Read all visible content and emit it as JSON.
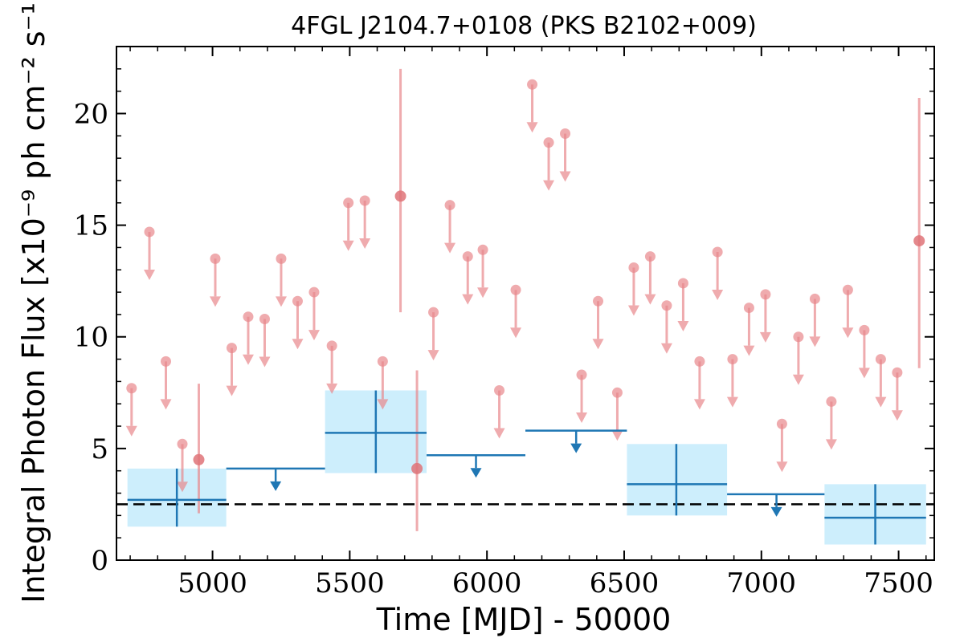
{
  "chart_data": {
    "type": "scatter",
    "title": "4FGL J2104.7+0108 (PKS B2102+009)",
    "xlabel": "Time [MJD] - 50000",
    "ylabel": "Integral Photon Flux [x10⁻⁹ ph cm⁻² s⁻¹]",
    "xlim": [
      4650,
      7630
    ],
    "ylim": [
      0,
      23
    ],
    "xticks": [
      5000,
      5500,
      6000,
      6500,
      7000,
      7500
    ],
    "yticks": [
      0,
      5,
      10,
      15,
      20
    ],
    "xtick_labels": [
      "5000",
      "5500",
      "6000",
      "6500",
      "7000",
      "7500"
    ],
    "ytick_labels": [
      "0",
      "5",
      "10",
      "15",
      "20"
    ],
    "grid": false,
    "colors": {
      "short_bins": "#e8888b",
      "long_bins": "#1f77b4",
      "long_bin_box": "#cdeefc",
      "reference_line": "#000000"
    },
    "reference_line": {
      "y": 2.5,
      "style": "dashed"
    },
    "short_bin_upper_limits": [
      {
        "x": 4705,
        "y": 7.7
      },
      {
        "x": 4770,
        "y": 14.7
      },
      {
        "x": 4830,
        "y": 8.9
      },
      {
        "x": 4890,
        "y": 5.2
      },
      {
        "x": 5010,
        "y": 13.5
      },
      {
        "x": 5070,
        "y": 9.5
      },
      {
        "x": 5130,
        "y": 10.9
      },
      {
        "x": 5190,
        "y": 10.8
      },
      {
        "x": 5250,
        "y": 13.5
      },
      {
        "x": 5310,
        "y": 11.6
      },
      {
        "x": 5370,
        "y": 12.0
      },
      {
        "x": 5435,
        "y": 9.6
      },
      {
        "x": 5495,
        "y": 16.0
      },
      {
        "x": 5555,
        "y": 16.1
      },
      {
        "x": 5620,
        "y": 8.9
      },
      {
        "x": 5805,
        "y": 11.1
      },
      {
        "x": 5865,
        "y": 15.9
      },
      {
        "x": 5930,
        "y": 13.6
      },
      {
        "x": 5985,
        "y": 13.9
      },
      {
        "x": 6045,
        "y": 7.6
      },
      {
        "x": 6105,
        "y": 12.1
      },
      {
        "x": 6165,
        "y": 21.3
      },
      {
        "x": 6225,
        "y": 18.7
      },
      {
        "x": 6285,
        "y": 19.1
      },
      {
        "x": 6345,
        "y": 8.3
      },
      {
        "x": 6405,
        "y": 11.6
      },
      {
        "x": 6475,
        "y": 7.5
      },
      {
        "x": 6535,
        "y": 13.1
      },
      {
        "x": 6595,
        "y": 13.6
      },
      {
        "x": 6655,
        "y": 11.4
      },
      {
        "x": 6715,
        "y": 12.4
      },
      {
        "x": 6775,
        "y": 8.9
      },
      {
        "x": 6840,
        "y": 13.8
      },
      {
        "x": 6895,
        "y": 9.0
      },
      {
        "x": 6955,
        "y": 11.3
      },
      {
        "x": 7015,
        "y": 11.9
      },
      {
        "x": 7075,
        "y": 6.1
      },
      {
        "x": 7135,
        "y": 10.0
      },
      {
        "x": 7195,
        "y": 11.7
      },
      {
        "x": 7255,
        "y": 7.1
      },
      {
        "x": 7315,
        "y": 12.1
      },
      {
        "x": 7375,
        "y": 10.3
      },
      {
        "x": 7435,
        "y": 9.0
      },
      {
        "x": 7495,
        "y": 8.4
      }
    ],
    "short_bin_detections": [
      {
        "x": 4950,
        "y": 4.5,
        "ylow": 2.1,
        "yhigh": 7.9
      },
      {
        "x": 5685,
        "y": 16.3,
        "ylow": 11.1,
        "yhigh": 22.0
      },
      {
        "x": 5745,
        "y": 4.1,
        "ylow": 1.3,
        "yhigh": 8.5
      },
      {
        "x": 7575,
        "y": 14.3,
        "ylow": 8.6,
        "yhigh": 20.7
      }
    ],
    "long_bin_detections": [
      {
        "x": 4870,
        "xlow": 4690,
        "xhigh": 5050,
        "y": 2.7,
        "ylow": 1.5,
        "yhigh": 4.1
      },
      {
        "x": 5595,
        "xlow": 5410,
        "xhigh": 5780,
        "y": 5.7,
        "ylow": 3.9,
        "yhigh": 7.6
      },
      {
        "x": 6690,
        "xlow": 6510,
        "xhigh": 6875,
        "y": 3.4,
        "ylow": 2.0,
        "yhigh": 5.2
      },
      {
        "x": 7415,
        "xlow": 7230,
        "xhigh": 7600,
        "y": 1.9,
        "ylow": 0.7,
        "yhigh": 3.4
      }
    ],
    "long_bin_upper_limits": [
      {
        "x": 5230,
        "xlow": 5050,
        "xhigh": 5410,
        "y": 4.1
      },
      {
        "x": 5960,
        "xlow": 5780,
        "xhigh": 6140,
        "y": 4.7
      },
      {
        "x": 6325,
        "xlow": 6140,
        "xhigh": 6510,
        "y": 5.8
      },
      {
        "x": 7055,
        "xlow": 6875,
        "xhigh": 7230,
        "y": 2.95
      }
    ]
  }
}
